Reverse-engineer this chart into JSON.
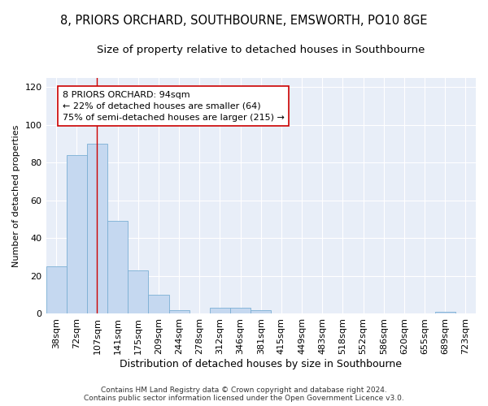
{
  "title": "8, PRIORS ORCHARD, SOUTHBOURNE, EMSWORTH, PO10 8GE",
  "subtitle": "Size of property relative to detached houses in Southbourne",
  "xlabel": "Distribution of detached houses by size in Southbourne",
  "ylabel": "Number of detached properties",
  "categories": [
    "38sqm",
    "72sqm",
    "107sqm",
    "141sqm",
    "175sqm",
    "209sqm",
    "244sqm",
    "278sqm",
    "312sqm",
    "346sqm",
    "381sqm",
    "415sqm",
    "449sqm",
    "483sqm",
    "518sqm",
    "552sqm",
    "586sqm",
    "620sqm",
    "655sqm",
    "689sqm",
    "723sqm"
  ],
  "values": [
    25,
    84,
    90,
    49,
    23,
    10,
    2,
    0,
    3,
    3,
    2,
    0,
    0,
    0,
    0,
    0,
    0,
    0,
    0,
    1,
    0
  ],
  "bar_color": "#c5d8f0",
  "bar_edge_color": "#7bafd4",
  "annotation_text": "8 PRIORS ORCHARD: 94sqm\n← 22% of detached houses are smaller (64)\n75% of semi-detached houses are larger (215) →",
  "vline_x": 2.0,
  "vline_color": "#cc0000",
  "annotation_box_color": "#ffffff",
  "annotation_box_edge": "#cc0000",
  "ylim": [
    0,
    125
  ],
  "yticks": [
    0,
    20,
    40,
    60,
    80,
    100,
    120
  ],
  "footer": "Contains HM Land Registry data © Crown copyright and database right 2024.\nContains public sector information licensed under the Open Government Licence v3.0.",
  "bg_color": "#e8eef8",
  "title_fontsize": 10.5,
  "subtitle_fontsize": 9.5,
  "ylabel_fontsize": 8,
  "xlabel_fontsize": 9,
  "tick_fontsize": 8,
  "annot_fontsize": 8
}
